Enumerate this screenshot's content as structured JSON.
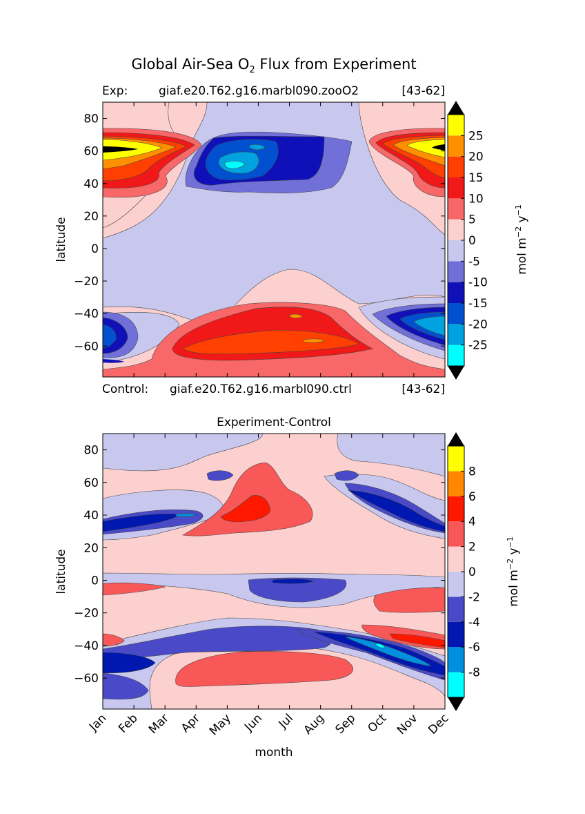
{
  "figure": {
    "title_main": "Global Air-Sea O",
    "title_sub": "2",
    "title_rest": " Flux from Experiment",
    "exp_label": "Exp:",
    "exp_name": "giaf.e20.T62.g16.marbl090.zooO2",
    "exp_years": "[43-62]",
    "ctrl_label": "Control:",
    "ctrl_name": "giaf.e20.T62.g16.marbl090.ctrl",
    "ctrl_years": "[43-62]"
  },
  "chart_data": [
    {
      "type": "contourf",
      "title": "",
      "xlabel": "",
      "ylabel": "latitude",
      "ylim": [
        -79,
        90
      ],
      "yticks": [
        80,
        60,
        40,
        20,
        0,
        -20,
        -40,
        -60
      ],
      "ytick_labels": [
        "80",
        "60",
        "40",
        "20",
        "0",
        "−20",
        "−40",
        "−60"
      ],
      "colorbar": {
        "label": "mol m",
        "label_sup1": "−2",
        "label_mid": " y",
        "label_sup2": "−1",
        "levels": [
          -30,
          -25,
          -20,
          -15,
          -10,
          -5,
          0,
          5,
          10,
          15,
          20,
          25,
          30
        ],
        "tick_labels": [
          "25",
          "20",
          "15",
          "10",
          "5",
          "0",
          "-5",
          "-10",
          "-15",
          "-20",
          "-25"
        ],
        "colors": [
          "#00ffff",
          "#00a3e0",
          "#0050d0",
          "#1010b8",
          "#7070d8",
          "#c8c8ee",
          "#fdd0d0",
          "#f86868",
          "#f01818",
          "#ff4000",
          "#ff9000",
          "#ffff00"
        ],
        "extend": "both"
      }
    },
    {
      "type": "contourf",
      "title": "Experiment-Control",
      "xlabel": "month",
      "ylabel": "latitude",
      "ylim": [
        -79,
        90
      ],
      "categories": [
        "Jan",
        "Feb",
        "Mar",
        "Apr",
        "May",
        "Jun",
        "Jul",
        "Aug",
        "Sep",
        "Oct",
        "Nov",
        "Dec"
      ],
      "yticks": [
        80,
        60,
        40,
        20,
        0,
        -20,
        -40,
        -60
      ],
      "ytick_labels": [
        "80",
        "60",
        "40",
        "20",
        "0",
        "−20",
        "−40",
        "−60"
      ],
      "colorbar": {
        "label": "mol m",
        "label_sup1": "−2",
        "label_mid": " y",
        "label_sup2": "−1",
        "levels": [
          -10,
          -8,
          -6,
          -4,
          -2,
          0,
          2,
          4,
          6,
          8,
          10
        ],
        "tick_labels": [
          "8",
          "6",
          "4",
          "2",
          "0",
          "-2",
          "-4",
          "-6",
          "-8"
        ],
        "colors": [
          "#00ffff",
          "#0090e0",
          "#0018b0",
          "#4a4ac8",
          "#c8c8ee",
          "#fdd0d0",
          "#f85858",
          "#ff1800",
          "#ff8800",
          "#ffff00"
        ],
        "extend": "both"
      }
    }
  ]
}
